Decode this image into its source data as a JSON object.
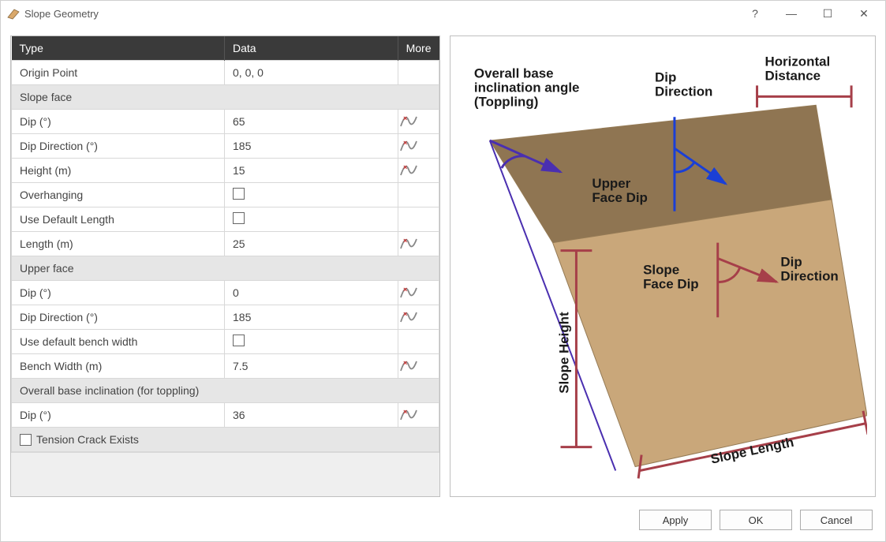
{
  "window": {
    "title": "Slope Geometry",
    "buttons": {
      "help": "?",
      "min": "—",
      "max": "☐",
      "close": "✕"
    }
  },
  "table": {
    "headers": {
      "type": "Type",
      "data": "Data",
      "more": "More"
    },
    "origin": {
      "label": "Origin Point",
      "value": "0, 0, 0"
    },
    "slope_face": {
      "section": "Slope face",
      "dip": {
        "label": "Dip (°)",
        "value": "65",
        "has_dist": true
      },
      "dip_direction": {
        "label": "Dip Direction (°)",
        "value": "185",
        "has_dist": true
      },
      "height": {
        "label": "Height (m)",
        "value": "15",
        "has_dist": true
      },
      "overhanging": {
        "label": "Overhanging",
        "checked": false
      },
      "use_default_len": {
        "label": "Use Default Length",
        "checked": false
      },
      "length": {
        "label": "Length (m)",
        "value": "25",
        "has_dist": true
      }
    },
    "upper_face": {
      "section": "Upper face",
      "dip": {
        "label": "Dip (°)",
        "value": "0",
        "has_dist": true
      },
      "dip_direction": {
        "label": "Dip Direction (°)",
        "value": "185",
        "has_dist": true
      },
      "use_default_bw": {
        "label": "Use default bench width",
        "checked": false
      },
      "bench_width": {
        "label": "Bench Width (m)",
        "value": "7.5",
        "has_dist": true
      }
    },
    "overall_base": {
      "section": "Overall base inclination (for toppling)",
      "dip": {
        "label": "Dip (°)",
        "value": "36",
        "has_dist": true
      }
    },
    "tension": {
      "label": "Tension Crack Exists",
      "checked": false
    }
  },
  "diagram": {
    "labels": {
      "overall_base": "Overall base\ninclination angle\n(Toppling)",
      "dip_direction_upper": "Dip\nDirection",
      "horizontal_distance": "Horizontal\nDistance",
      "upper_face_dip": "Upper\nFace Dip",
      "slope_face_dip": "Slope\nFace Dip",
      "dip_direction_slope": "Dip\nDirection",
      "slope_height": "Slope Height",
      "slope_length": "Slope Length"
    },
    "colors": {
      "upper_face": "#8f7552",
      "slope_face": "#c9a77a",
      "edge": "#947a55",
      "height_bar": "#a63f49",
      "length_bar": "#a63f49",
      "horiz_bar": "#a63f49",
      "angle_arrow_purple": "#4a2fb0",
      "dip_arrow_blue": "#1a3fd6",
      "dip_arrow_red": "#a63f49",
      "text": "#1a1a1a"
    }
  },
  "footer": {
    "apply": "Apply",
    "ok": "OK",
    "cancel": "Cancel"
  }
}
